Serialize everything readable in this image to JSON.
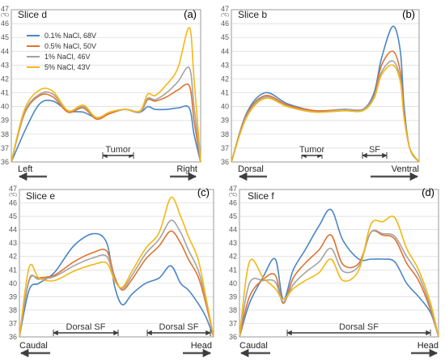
{
  "colors": {
    "blue": "#4a86c6",
    "orange": "#e2722f",
    "gray": "#a3a3a3",
    "yellow": "#f4b714"
  },
  "y_unit": "(℃)",
  "legend": [
    {
      "key": "blue",
      "label": "0.1% NaCl, 68V"
    },
    {
      "key": "orange",
      "label": "0.5% NaCl, 50V"
    },
    {
      "key": "gray",
      "label": "1% NaCl, 46V"
    },
    {
      "key": "yellow",
      "label": "5% NaCl, 43V"
    }
  ],
  "chart_data": [
    {
      "type": "line",
      "panel": "(a)",
      "title": "Slice d",
      "left_label": "Left",
      "right_label": "Right",
      "annotations": [
        "Tumor"
      ],
      "ylim": [
        36,
        47
      ],
      "yticks": [
        36,
        37,
        38,
        39,
        40,
        41,
        42,
        43,
        44,
        45,
        46,
        47
      ],
      "series": [
        {
          "name": "0.1% NaCl, 68V",
          "color": "blue",
          "x": [
            0,
            0.08,
            0.15,
            0.22,
            0.3,
            0.38,
            0.45,
            0.52,
            0.6,
            0.68,
            0.72,
            0.76,
            0.82,
            0.88,
            0.94,
            0.965,
            1
          ],
          "values": [
            36,
            38.5,
            40.2,
            40.4,
            39.7,
            39.6,
            39.2,
            39.5,
            39.8,
            39.6,
            40.0,
            39.8,
            39.8,
            39.9,
            39.9,
            38,
            36
          ]
        },
        {
          "name": "0.5% NaCl, 50V",
          "color": "orange",
          "x": [
            0,
            0.07,
            0.15,
            0.22,
            0.3,
            0.38,
            0.45,
            0.52,
            0.6,
            0.68,
            0.72,
            0.76,
            0.82,
            0.88,
            0.94,
            0.965,
            1
          ],
          "values": [
            36,
            39.5,
            40.8,
            40.7,
            39.6,
            39.9,
            39.1,
            39.5,
            39.8,
            39.6,
            40.5,
            40.4,
            40.7,
            41.2,
            41.5,
            39,
            36
          ]
        },
        {
          "name": "1% NaCl, 46V",
          "color": "gray",
          "x": [
            0,
            0.07,
            0.15,
            0.22,
            0.3,
            0.38,
            0.45,
            0.52,
            0.6,
            0.68,
            0.72,
            0.76,
            0.82,
            0.88,
            0.94,
            0.965,
            1
          ],
          "values": [
            36,
            39.6,
            40.9,
            40.9,
            39.7,
            40.0,
            39.2,
            39.6,
            39.8,
            39.6,
            40.6,
            40.5,
            41.0,
            41.8,
            42.8,
            40,
            36
          ]
        },
        {
          "name": "5% NaCl, 43V",
          "color": "yellow",
          "x": [
            0,
            0.07,
            0.15,
            0.22,
            0.3,
            0.38,
            0.45,
            0.52,
            0.6,
            0.68,
            0.72,
            0.76,
            0.82,
            0.88,
            0.94,
            0.965,
            1
          ],
          "values": [
            36,
            39.8,
            41.2,
            41.1,
            39.7,
            40.1,
            39.2,
            39.6,
            39.8,
            39.7,
            40.9,
            40.8,
            41.6,
            42.8,
            45.7,
            42,
            36
          ]
        }
      ]
    },
    {
      "type": "line",
      "panel": "(b)",
      "title": "Slice b",
      "left_label": "Dorsal",
      "right_label": "Ventral",
      "annotations": [
        "Tumor",
        "SF"
      ],
      "ylim": [
        36,
        47
      ],
      "yticks": [
        36,
        37,
        38,
        39,
        40,
        41,
        42,
        43,
        44,
        45,
        46,
        47
      ],
      "series": [
        {
          "name": "0.1% NaCl, 68V",
          "color": "blue",
          "x": [
            0,
            0.08,
            0.18,
            0.3,
            0.45,
            0.6,
            0.7,
            0.76,
            0.8,
            0.86,
            0.9,
            0.92,
            0.95,
            1
          ],
          "values": [
            36,
            39.5,
            41.0,
            40.2,
            39.7,
            39.8,
            39.8,
            41.0,
            43.5,
            45.8,
            44,
            40,
            37,
            36
          ]
        },
        {
          "name": "0.5% NaCl, 50V",
          "color": "orange",
          "x": [
            0,
            0.08,
            0.18,
            0.3,
            0.45,
            0.6,
            0.7,
            0.76,
            0.8,
            0.86,
            0.9,
            0.92,
            0.95,
            1
          ],
          "values": [
            36,
            39.4,
            40.8,
            40.1,
            39.7,
            39.8,
            39.8,
            40.8,
            43.0,
            44.0,
            42.5,
            39.5,
            37,
            36
          ]
        },
        {
          "name": "1% NaCl, 46V",
          "color": "gray",
          "x": [
            0,
            0.08,
            0.18,
            0.3,
            0.45,
            0.6,
            0.7,
            0.76,
            0.8,
            0.86,
            0.9,
            0.92,
            0.95,
            1
          ],
          "values": [
            36,
            39.3,
            40.7,
            40.0,
            39.6,
            39.8,
            39.8,
            40.7,
            42.5,
            43.3,
            42.0,
            39.3,
            37,
            36
          ]
        },
        {
          "name": "5% NaCl, 43V",
          "color": "yellow",
          "x": [
            0,
            0.08,
            0.18,
            0.3,
            0.45,
            0.6,
            0.7,
            0.76,
            0.8,
            0.86,
            0.9,
            0.92,
            0.95,
            1
          ],
          "values": [
            36,
            39.2,
            40.6,
            40.0,
            39.6,
            39.7,
            39.7,
            40.6,
            42.3,
            43.0,
            41.8,
            39.2,
            37,
            36
          ]
        }
      ]
    },
    {
      "type": "line",
      "panel": "(c)",
      "title": "Slice e",
      "left_label": "Caudal",
      "right_label": "Head",
      "annotations": [
        "Dorsal SF",
        "Dorsal SF"
      ],
      "ylim": [
        36,
        47
      ],
      "yticks": [
        36,
        37,
        38,
        39,
        40,
        41,
        42,
        43,
        44,
        45,
        46,
        47
      ],
      "series": [
        {
          "name": "0.1% NaCl, 68V",
          "color": "blue",
          "x": [
            0,
            0.05,
            0.1,
            0.18,
            0.28,
            0.38,
            0.45,
            0.49,
            0.53,
            0.58,
            0.65,
            0.72,
            0.78,
            0.83,
            0.87,
            0.92,
            0.96,
            1
          ],
          "values": [
            36,
            39.5,
            40.0,
            40.8,
            42.8,
            43.7,
            43.0,
            39.8,
            38.4,
            39.2,
            40.0,
            40.4,
            41.3,
            40.0,
            39.5,
            38.5,
            37.5,
            36
          ]
        },
        {
          "name": "0.5% NaCl, 50V",
          "color": "orange",
          "x": [
            0,
            0.05,
            0.1,
            0.18,
            0.28,
            0.38,
            0.45,
            0.49,
            0.53,
            0.58,
            0.65,
            0.72,
            0.78,
            0.83,
            0.87,
            0.92,
            0.96,
            1
          ],
          "values": [
            36,
            40.2,
            40.4,
            40.6,
            41.6,
            42.3,
            42.4,
            40.5,
            39.5,
            40.3,
            41.8,
            42.8,
            43.9,
            43.0,
            41.8,
            40.5,
            38.5,
            36
          ]
        },
        {
          "name": "1% NaCl, 46V",
          "color": "gray",
          "x": [
            0,
            0.05,
            0.1,
            0.18,
            0.28,
            0.38,
            0.45,
            0.49,
            0.53,
            0.58,
            0.65,
            0.72,
            0.78,
            0.83,
            0.87,
            0.92,
            0.96,
            1
          ],
          "values": [
            36,
            40.3,
            40.3,
            40.5,
            41.3,
            41.9,
            42.0,
            40.3,
            39.6,
            40.6,
            42.2,
            43.3,
            44.7,
            43.8,
            42.5,
            41.0,
            38.8,
            36
          ]
        },
        {
          "name": "5% NaCl, 43V",
          "color": "yellow",
          "x": [
            0,
            0.05,
            0.1,
            0.18,
            0.28,
            0.38,
            0.45,
            0.49,
            0.53,
            0.58,
            0.65,
            0.72,
            0.78,
            0.83,
            0.87,
            0.92,
            0.96,
            1
          ],
          "values": [
            36,
            41.2,
            40.4,
            40.2,
            40.9,
            41.4,
            41.5,
            40.2,
            39.7,
            40.9,
            42.6,
            43.8,
            46.4,
            45.0,
            43.5,
            41.8,
            39.0,
            36
          ]
        }
      ]
    },
    {
      "type": "line",
      "panel": "(d)",
      "title": "Slice f",
      "left_label": "Caudal",
      "right_label": "Head",
      "annotations": [
        "Dorsal SF"
      ],
      "ylim": [
        36,
        47
      ],
      "yticks": [
        36,
        37,
        38,
        39,
        40,
        41,
        42,
        43,
        44,
        45,
        46,
        47
      ],
      "series": [
        {
          "name": "0.1% NaCl, 68V",
          "color": "blue",
          "x": [
            0,
            0.05,
            0.12,
            0.18,
            0.22,
            0.27,
            0.33,
            0.4,
            0.46,
            0.52,
            0.6,
            0.66,
            0.72,
            0.78,
            0.84,
            0.9,
            0.96,
            1
          ],
          "values": [
            36,
            38.5,
            40.5,
            41.8,
            38.8,
            41.0,
            42.5,
            44.3,
            45.5,
            43.2,
            41.8,
            41.8,
            41.8,
            41.6,
            40.0,
            39.0,
            37.8,
            36
          ]
        },
        {
          "name": "0.5% NaCl, 50V",
          "color": "orange",
          "x": [
            0,
            0.05,
            0.12,
            0.18,
            0.22,
            0.27,
            0.33,
            0.4,
            0.46,
            0.52,
            0.6,
            0.66,
            0.72,
            0.78,
            0.84,
            0.9,
            0.96,
            1
          ],
          "values": [
            36,
            39.0,
            40.3,
            40.6,
            38.5,
            40.4,
            41.5,
            42.5,
            43.6,
            41.4,
            41.5,
            43.8,
            43.6,
            43.3,
            41.5,
            40.2,
            38.0,
            36
          ]
        },
        {
          "name": "1% NaCl, 46V",
          "color": "gray",
          "x": [
            0,
            0.05,
            0.12,
            0.18,
            0.22,
            0.27,
            0.33,
            0.4,
            0.46,
            0.52,
            0.6,
            0.66,
            0.72,
            0.78,
            0.84,
            0.9,
            0.96,
            1
          ],
          "values": [
            36,
            40.0,
            40.2,
            40.1,
            38.6,
            39.9,
            40.8,
            41.6,
            42.6,
            40.9,
            41.3,
            43.8,
            43.7,
            43.5,
            42.0,
            40.6,
            38.2,
            36
          ]
        },
        {
          "name": "5% NaCl, 43V",
          "color": "yellow",
          "x": [
            0,
            0.05,
            0.12,
            0.18,
            0.22,
            0.27,
            0.33,
            0.4,
            0.46,
            0.52,
            0.6,
            0.66,
            0.72,
            0.78,
            0.84,
            0.9,
            0.96,
            1
          ],
          "values": [
            36,
            41.6,
            40.4,
            39.6,
            38.8,
            39.6,
            40.2,
            40.8,
            41.8,
            40.2,
            41.0,
            44.4,
            44.6,
            44.9,
            42.6,
            41.0,
            38.5,
            36
          ]
        }
      ]
    }
  ]
}
